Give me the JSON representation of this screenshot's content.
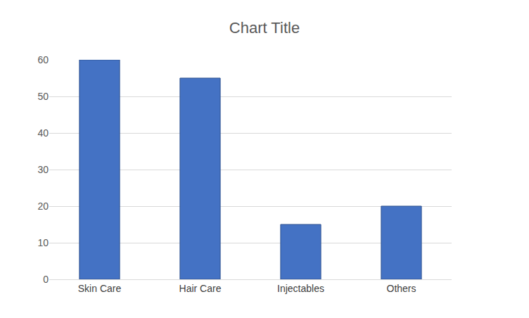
{
  "chart_data": {
    "type": "bar",
    "title": "Chart Title",
    "categories": [
      "Skin Care",
      "Hair Care",
      "Injectables",
      "Others"
    ],
    "values": [
      60,
      55,
      15,
      20
    ],
    "color": "#4472c4",
    "ylim": [
      0,
      60
    ],
    "yticks": [
      0,
      10,
      20,
      30,
      40,
      50,
      60
    ],
    "grid": true
  }
}
